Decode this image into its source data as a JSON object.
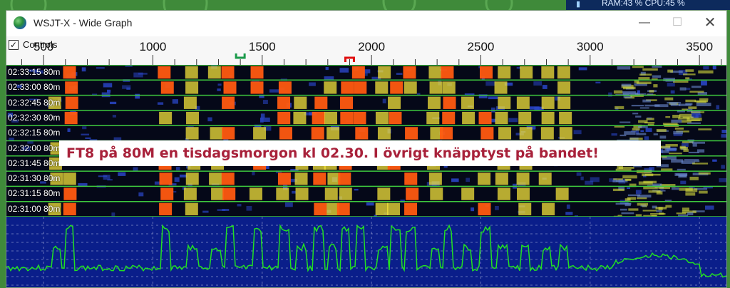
{
  "tray": {
    "stats": "RAM:43 %   CPU:45 %"
  },
  "window": {
    "title": "WSJT-X - Wide Graph",
    "minimize_glyph": "—",
    "maximize_glyph": "☐",
    "close_glyph": "✕"
  },
  "controls": {
    "label": "Controls",
    "checked": true,
    "check_glyph": "✓"
  },
  "ruler": {
    "freq_min": 330,
    "freq_max": 3630,
    "major_labels": [
      "500",
      "1000",
      "1500",
      "2000",
      "2500",
      "3000",
      "3500"
    ],
    "rx_marker_freq": 1400,
    "tx_marker_freq": 1900,
    "rx_color": "#1a9a4a",
    "tx_color": "#e01010"
  },
  "waterfall": {
    "rows": [
      {
        "time": "02:33:15",
        "band": "80m"
      },
      {
        "time": "02:33:00",
        "band": "80m"
      },
      {
        "time": "02:32:45",
        "band": "80m"
      },
      {
        "time": "02:32:30",
        "band": "80m"
      },
      {
        "time": "02:32:15",
        "band": "80m"
      },
      {
        "time": "02:32:00",
        "band": "80m"
      },
      {
        "time": "02:31:45",
        "band": "80m"
      },
      {
        "time": "02:31:30",
        "band": "80m"
      },
      {
        "time": "02:31:15",
        "band": "80m"
      },
      {
        "time": "02:31:00",
        "band": "80m"
      }
    ],
    "separator_color": "#3ec83e",
    "signal_freqs": [
      560,
      620,
      1060,
      1180,
      1290,
      1350,
      1480,
      1600,
      1680,
      1760,
      1820,
      1880,
      1950,
      2050,
      2110,
      2180,
      2290,
      2350,
      2440,
      2520,
      2600,
      2700,
      2800,
      2880
    ],
    "strong_freqs": [
      620,
      1060,
      1350,
      1480,
      1600,
      1760,
      1880,
      1950,
      2110,
      2180,
      2350,
      2520
    ],
    "noise_band": [
      3100,
      3500
    ],
    "colors": {
      "strong": "#ff5a10",
      "medium": "#f3e23a",
      "weak": "#2a46c8"
    }
  },
  "banner": {
    "text": "FT8 på 80M en tisdagsmorgon  kl 02.30. I övrigt knäpptyst på bandet!"
  },
  "spectrum": {
    "line_color": "#22e022",
    "background": "#0a1e8a",
    "gridline_color": "#a0a8d8"
  }
}
